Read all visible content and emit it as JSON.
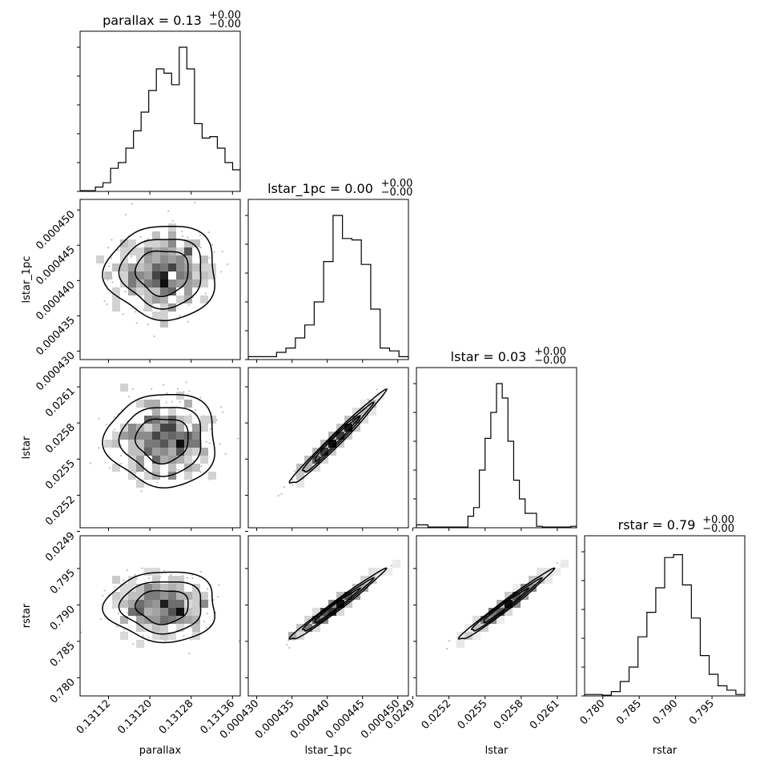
{
  "chart_data": {
    "type": "corner",
    "parameters": [
      {
        "key": "parallax",
        "label": "parallax",
        "title_prefix": "parallax = 0.13",
        "title_sup": "+0.00",
        "title_sub": "−0.00",
        "lim": [
          0.131065,
          0.131375
        ],
        "ticks": [
          0.13112,
          0.1312,
          0.13128,
          0.13136
        ],
        "tick_labels": [
          "0.13112",
          "0.13120",
          "0.13128",
          "0.13136"
        ],
        "mean": 0.131225,
        "sd": 4.65e-05,
        "hist": [
          0.005,
          0.005,
          0.03,
          0.06,
          0.16,
          0.2,
          0.3,
          0.42,
          0.55,
          0.7,
          0.85,
          0.82,
          0.74,
          1.0,
          0.85,
          0.47,
          0.37,
          0.38,
          0.3,
          0.2,
          0.15
        ]
      },
      {
        "key": "lstar_1pc",
        "label": "lstar_1pc",
        "title_prefix": "lstar_1pc = 0.00",
        "title_sup": "+0.00",
        "title_sub": "−0.00",
        "lim": [
          0.0004288,
          0.0004515
        ],
        "ticks": [
          0.00043,
          0.000435,
          0.00044,
          0.000445,
          0.00045
        ],
        "tick_labels": [
          "0.000430",
          "0.000435",
          "0.000440",
          "0.000445",
          "0.000450"
        ],
        "mean": 0.0004412,
        "sd": 2.9e-06,
        "hist": [
          0.02,
          0.02,
          0.02,
          0.05,
          0.08,
          0.15,
          0.24,
          0.4,
          0.68,
          1.0,
          0.84,
          0.83,
          0.66,
          0.35,
          0.08,
          0.06,
          0.02
        ]
      },
      {
        "key": "lstar",
        "label": "lstar",
        "title_prefix": "lstar = 0.03",
        "title_sup": "+0.00",
        "title_sub": "−0.00",
        "lim": [
          0.02493,
          0.02626
        ],
        "ticks": [
          0.0249,
          0.0252,
          0.0255,
          0.0258,
          0.0261
        ],
        "tick_labels": [
          "0.0249",
          "0.0252",
          "0.0255",
          "0.0258",
          "0.0261"
        ],
        "mean": 0.02566,
        "sd": 0.000168,
        "hist": [
          0.02,
          0.02,
          0.005,
          0.005,
          0.005,
          0.005,
          0.005,
          0.005,
          0.005,
          0.08,
          0.14,
          0.4,
          0.62,
          0.8,
          1.0,
          0.9,
          0.6,
          0.33,
          0.2,
          0.1,
          0.1,
          0.01,
          0.005,
          0.005,
          0.005,
          0.005,
          0.005,
          0.01
        ]
      },
      {
        "key": "rstar",
        "label": "rstar",
        "title_prefix": "rstar = 0.79",
        "title_sup": "+0.00",
        "title_sub": "−0.00",
        "lim": [
          0.7775,
          0.7995
        ],
        "ticks": [
          0.78,
          0.785,
          0.79,
          0.795
        ],
        "tick_labels": [
          "0.780",
          "0.785",
          "0.790",
          "0.795"
        ],
        "mean": 0.7898,
        "sd": 0.0021,
        "hist": [
          0.01,
          0.01,
          0.005,
          0.03,
          0.1,
          0.2,
          0.41,
          0.58,
          0.75,
          0.96,
          0.98,
          0.77,
          0.54,
          0.28,
          0.15,
          0.07,
          0.04,
          0.01
        ]
      }
    ],
    "correlations": [
      [
        1,
        0,
        0,
        0
      ],
      [
        0,
        1,
        0.985,
        0.985
      ],
      [
        0,
        0.985,
        1,
        0.985
      ],
      [
        0,
        0.985,
        0.985,
        1
      ]
    ],
    "hist_style": "step",
    "contours": true,
    "grid": false,
    "legend": "none"
  }
}
